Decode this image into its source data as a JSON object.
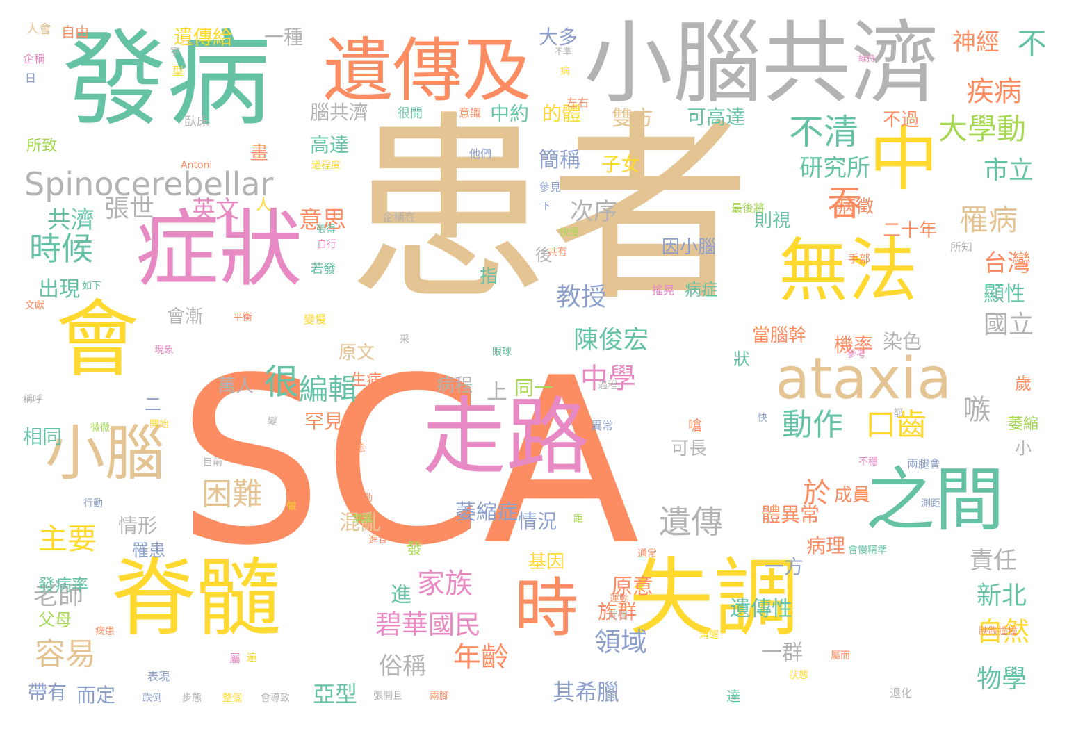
{
  "palette": {
    "green": "#66c2a5",
    "orange": "#fc8d62",
    "blue": "#8da0cb",
    "pink": "#e78ac3",
    "lime": "#a6d854",
    "yellow": "#ffd92f",
    "tan": "#e5c494",
    "gray": "#b3b3b3"
  },
  "words": [
    {
      "text": "SCA",
      "color": "orange"
    },
    {
      "text": "患者",
      "color": "tan"
    },
    {
      "text": "發病",
      "color": "green"
    },
    {
      "text": "小腦共濟",
      "color": "gray"
    },
    {
      "text": "遺傳及",
      "color": "orange"
    },
    {
      "text": "症狀",
      "color": "pink"
    },
    {
      "text": "會",
      "color": "yellow"
    },
    {
      "text": "脊髓",
      "color": "yellow"
    },
    {
      "text": "失調",
      "color": "yellow"
    },
    {
      "text": "走路",
      "color": "pink"
    },
    {
      "text": "無法",
      "color": "yellow"
    },
    {
      "text": "中",
      "color": "yellow"
    },
    {
      "text": "ataxia",
      "color": "tan"
    },
    {
      "text": "之間",
      "color": "green"
    },
    {
      "text": "時",
      "color": "orange"
    },
    {
      "text": "小腦",
      "color": "tan"
    },
    {
      "text": "Spinocerebellar",
      "color": "gray"
    },
    {
      "text": "不清",
      "color": "green"
    },
    {
      "text": "吞",
      "color": "orange"
    },
    {
      "text": "大學動",
      "color": "lime"
    },
    {
      "text": "研究所",
      "color": "green"
    },
    {
      "text": "疾病",
      "color": "orange"
    },
    {
      "text": "不",
      "color": "green"
    },
    {
      "text": "神經",
      "color": "orange"
    },
    {
      "text": "市立",
      "color": "green"
    },
    {
      "text": "罹病",
      "color": "tan"
    },
    {
      "text": "時候",
      "color": "green"
    },
    {
      "text": "張世",
      "color": "gray"
    },
    {
      "text": "共濟",
      "color": "green"
    },
    {
      "text": "英文",
      "color": "pink"
    },
    {
      "text": "意思",
      "color": "orange"
    },
    {
      "text": "次序",
      "color": "gray"
    },
    {
      "text": "教授",
      "color": "blue"
    },
    {
      "text": "陳俊宏",
      "color": "green"
    },
    {
      "text": "很",
      "color": "green"
    },
    {
      "text": "編輯",
      "color": "green"
    },
    {
      "text": "困難",
      "color": "tan"
    },
    {
      "text": "動作",
      "color": "green"
    },
    {
      "text": "口齒",
      "color": "yellow"
    },
    {
      "text": "中學",
      "color": "pink"
    },
    {
      "text": "遺傳",
      "color": "gray"
    },
    {
      "text": "主要",
      "color": "yellow"
    },
    {
      "text": "老師",
      "color": "gray"
    },
    {
      "text": "容易",
      "color": "tan"
    },
    {
      "text": "家族",
      "color": "pink"
    },
    {
      "text": "碧華國民",
      "color": "pink"
    },
    {
      "text": "年齡",
      "color": "orange"
    },
    {
      "text": "萎縮症",
      "color": "blue"
    },
    {
      "text": "遺傳性",
      "color": "green"
    },
    {
      "text": "台灣",
      "color": "orange"
    },
    {
      "text": "國立",
      "color": "gray"
    },
    {
      "text": "嗾",
      "color": "gray"
    },
    {
      "text": "於",
      "color": "orange"
    },
    {
      "text": "自然",
      "color": "yellow"
    },
    {
      "text": "物學",
      "color": "green"
    },
    {
      "text": "新北",
      "color": "green"
    },
    {
      "text": "責任",
      "color": "gray"
    },
    {
      "text": "領域",
      "color": "blue"
    },
    {
      "text": "其希臘",
      "color": "blue"
    },
    {
      "text": "俗稱",
      "color": "gray"
    },
    {
      "text": "亞型",
      "color": "green"
    },
    {
      "text": "雙方",
      "color": "tan"
    },
    {
      "text": "可高達",
      "color": "green"
    },
    {
      "text": "簡稱",
      "color": "blue"
    },
    {
      "text": "子女",
      "color": "yellow"
    },
    {
      "text": "的體",
      "color": "yellow"
    },
    {
      "text": "高達",
      "color": "green"
    },
    {
      "text": "腦共濟",
      "color": "gray"
    },
    {
      "text": "中約",
      "color": "green"
    },
    {
      "text": "遺傳給",
      "color": "yellow"
    },
    {
      "text": "一種",
      "color": "gray"
    },
    {
      "text": "大多",
      "color": "blue"
    },
    {
      "text": "自由",
      "color": "orange"
    },
    {
      "text": "人會",
      "color": "tan"
    },
    {
      "text": "所致",
      "color": "lime"
    },
    {
      "text": "畫",
      "color": "orange"
    },
    {
      "text": "人",
      "color": "yellow"
    },
    {
      "text": "出現",
      "color": "green"
    },
    {
      "text": "會漸",
      "color": "gray"
    },
    {
      "text": "情形",
      "color": "gray"
    },
    {
      "text": "罹患",
      "color": "blue"
    },
    {
      "text": "發病率",
      "color": "green"
    },
    {
      "text": "父母",
      "color": "lime"
    },
    {
      "text": "帶有",
      "color": "blue"
    },
    {
      "text": "而定",
      "color": "blue"
    },
    {
      "text": "相同",
      "color": "green"
    },
    {
      "text": "原文",
      "color": "tan"
    },
    {
      "text": "罕見",
      "color": "orange"
    },
    {
      "text": "混亂",
      "color": "tan"
    },
    {
      "text": "萬人",
      "color": "gray"
    },
    {
      "text": "上",
      "color": "gray"
    },
    {
      "text": "同一",
      "color": "lime"
    },
    {
      "text": "病程",
      "color": "gray"
    },
    {
      "text": "情況",
      "color": "blue"
    },
    {
      "text": "原意",
      "color": "orange"
    },
    {
      "text": "基因",
      "color": "yellow"
    },
    {
      "text": "族群",
      "color": "orange"
    },
    {
      "text": "進",
      "color": "green"
    },
    {
      "text": "一群",
      "color": "gray"
    },
    {
      "text": "一方",
      "color": "blue"
    },
    {
      "text": "病理",
      "color": "orange"
    },
    {
      "text": "體異常",
      "color": "orange"
    },
    {
      "text": "染色",
      "color": "gray"
    },
    {
      "text": "機率",
      "color": "orange"
    },
    {
      "text": "顯性",
      "color": "green"
    },
    {
      "text": "二十年",
      "color": "orange"
    },
    {
      "text": "病徵",
      "color": "orange"
    },
    {
      "text": "則視",
      "color": "green"
    },
    {
      "text": "當腦幹",
      "color": "orange"
    },
    {
      "text": "因小腦",
      "color": "blue"
    },
    {
      "text": "病症",
      "color": "green"
    },
    {
      "text": "可長",
      "color": "gray"
    },
    {
      "text": "指",
      "color": "green"
    },
    {
      "text": "後",
      "color": "gray"
    },
    {
      "text": "不過",
      "color": "orange"
    },
    {
      "text": "歲",
      "color": "orange"
    },
    {
      "text": "萎縮",
      "color": "lime"
    },
    {
      "text": "小",
      "color": "gray"
    },
    {
      "text": "兩腿會",
      "color": "blue"
    },
    {
      "text": "狀",
      "color": "green"
    },
    {
      "text": "成員",
      "color": "orange"
    },
    {
      "text": "生病",
      "color": "orange"
    },
    {
      "text": "發",
      "color": "lime"
    },
    {
      "text": "二",
      "color": "blue"
    },
    {
      "text": "左右",
      "color": "orange"
    },
    {
      "text": "很開",
      "color": "green"
    },
    {
      "text": "意識",
      "color": "orange"
    },
    {
      "text": "他們",
      "color": "blue"
    },
    {
      "text": "參見",
      "color": "blue"
    },
    {
      "text": "企稱在",
      "color": "gray"
    },
    {
      "text": "最後將",
      "color": "lime"
    },
    {
      "text": "手部",
      "color": "orange"
    },
    {
      "text": "所知",
      "color": "gray"
    },
    {
      "text": "臥床",
      "color": "gray"
    },
    {
      "text": "Antoni",
      "color": "orange"
    },
    {
      "text": "過程度",
      "color": "yellow"
    },
    {
      "text": "企稱",
      "color": "pink"
    },
    {
      "text": "日",
      "color": "blue"
    },
    {
      "text": "宇",
      "color": "gray"
    },
    {
      "text": "型",
      "color": "yellow"
    },
    {
      "text": "不準",
      "color": "gray"
    },
    {
      "text": "病",
      "color": "yellow"
    },
    {
      "text": "維持",
      "color": "pink"
    },
    {
      "text": "下",
      "color": "blue"
    },
    {
      "text": "快慢",
      "color": "lime"
    },
    {
      "text": "共有",
      "color": "orange"
    },
    {
      "text": "張得",
      "color": "green"
    },
    {
      "text": "自行",
      "color": "pink"
    },
    {
      "text": "若發",
      "color": "green"
    },
    {
      "text": "搖晃",
      "color": "pink"
    },
    {
      "text": "變慢",
      "color": "yellow"
    },
    {
      "text": "平衡",
      "color": "orange"
    },
    {
      "text": "如下",
      "color": "green"
    },
    {
      "text": "文獻",
      "color": "orange"
    },
    {
      "text": "現象",
      "color": "pink"
    },
    {
      "text": "稱呼",
      "color": "gray"
    },
    {
      "text": "微微",
      "color": "lime"
    },
    {
      "text": "開始",
      "color": "yellow"
    },
    {
      "text": "目前",
      "color": "gray"
    },
    {
      "text": "行動",
      "color": "blue"
    },
    {
      "text": "做",
      "color": "yellow"
    },
    {
      "text": "轉動",
      "color": "orange"
    },
    {
      "text": "講話",
      "color": "lime"
    },
    {
      "text": "進食",
      "color": "orange"
    },
    {
      "text": "病患",
      "color": "orange"
    },
    {
      "text": "表現",
      "color": "blue"
    },
    {
      "text": "跌倒",
      "color": "blue"
    },
    {
      "text": "步態",
      "color": "gray"
    },
    {
      "text": "整個",
      "color": "yellow"
    },
    {
      "text": "會導致",
      "color": "gray"
    },
    {
      "text": "張開且",
      "color": "gray"
    },
    {
      "text": "兩腳",
      "color": "orange"
    },
    {
      "text": "達",
      "color": "green"
    },
    {
      "text": "退化",
      "color": "gray"
    },
    {
      "text": "跌跌撞撞",
      "color": "orange"
    },
    {
      "text": "狀態",
      "color": "yellow"
    },
    {
      "text": "屬而",
      "color": "orange"
    },
    {
      "text": "清醒",
      "color": "yellow"
    },
    {
      "text": "同間",
      "color": "gray"
    },
    {
      "text": "運動",
      "color": "orange"
    },
    {
      "text": "通常",
      "color": "orange"
    },
    {
      "text": "會慢精準",
      "color": "green"
    },
    {
      "text": "測距",
      "color": "blue"
    },
    {
      "text": "不穩",
      "color": "pink"
    },
    {
      "text": "都",
      "color": "gray"
    },
    {
      "text": "參考",
      "color": "pink"
    },
    {
      "text": "眼球",
      "color": "green"
    },
    {
      "text": "過程",
      "color": "gray"
    },
    {
      "text": "異常",
      "color": "blue"
    },
    {
      "text": "變",
      "color": "gray"
    },
    {
      "text": "癒",
      "color": "orange"
    },
    {
      "text": "嗆",
      "color": "orange"
    },
    {
      "text": "采",
      "color": "gray"
    },
    {
      "text": "距",
      "color": "lime"
    },
    {
      "text": "快",
      "color": "blue"
    },
    {
      "text": "屬",
      "color": "pink"
    },
    {
      "text": "遍",
      "color": "yellow"
    }
  ]
}
